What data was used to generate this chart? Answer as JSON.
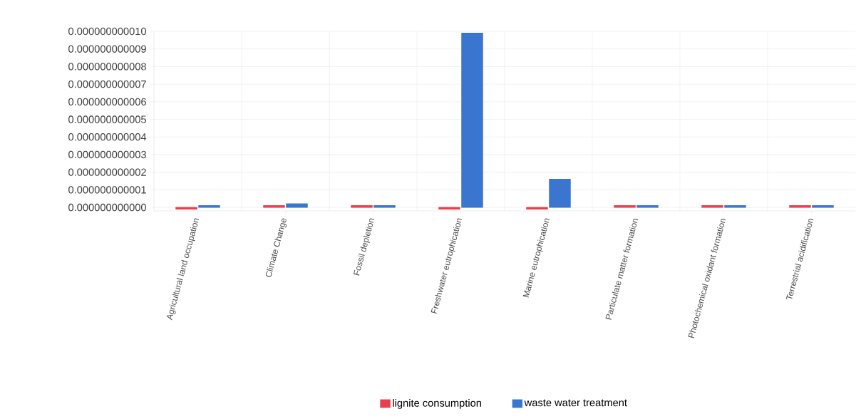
{
  "chart_data": {
    "type": "bar",
    "categories": [
      "Agricultural land occupation",
      "Climate Change",
      "Fossil depletion",
      "Freshwater eutrophication",
      "Marine eutrophication",
      "Particulate matter formation",
      "Photochemical oxidant formation",
      "Terrestrial acidification"
    ],
    "series": [
      {
        "name": "lignite consumption",
        "color": "#e8404c",
        "values": [
          -1e-13,
          1e-13,
          1e-13,
          -1e-13,
          -1e-13,
          1e-13,
          1e-13,
          1e-13
        ]
      },
      {
        "name": "waste water treatment",
        "color": "#3a76d0",
        "values": [
          1e-13,
          2e-13,
          1e-13,
          9.9e-12,
          1.6e-12,
          1e-13,
          1e-13,
          1e-13
        ]
      }
    ],
    "ylim": [
      -2e-13,
      1e-11
    ],
    "yticks": [
      {
        "value": 0,
        "label": "0.000000000000"
      },
      {
        "value": 1e-12,
        "label": "0.000000000001"
      },
      {
        "value": 2e-12,
        "label": "0.000000000002"
      },
      {
        "value": 3e-12,
        "label": "0.000000000003"
      },
      {
        "value": 4e-12,
        "label": "0.000000000004"
      },
      {
        "value": 5e-12,
        "label": "0.000000000005"
      },
      {
        "value": 6e-12,
        "label": "0.000000000006"
      },
      {
        "value": 7e-12,
        "label": "0.000000000007"
      },
      {
        "value": 8e-12,
        "label": "0.000000000008"
      },
      {
        "value": 9e-12,
        "label": "0.000000000009"
      },
      {
        "value": 1e-11,
        "label": "0.000000000010"
      }
    ],
    "grid": true,
    "legend": "bottom"
  }
}
